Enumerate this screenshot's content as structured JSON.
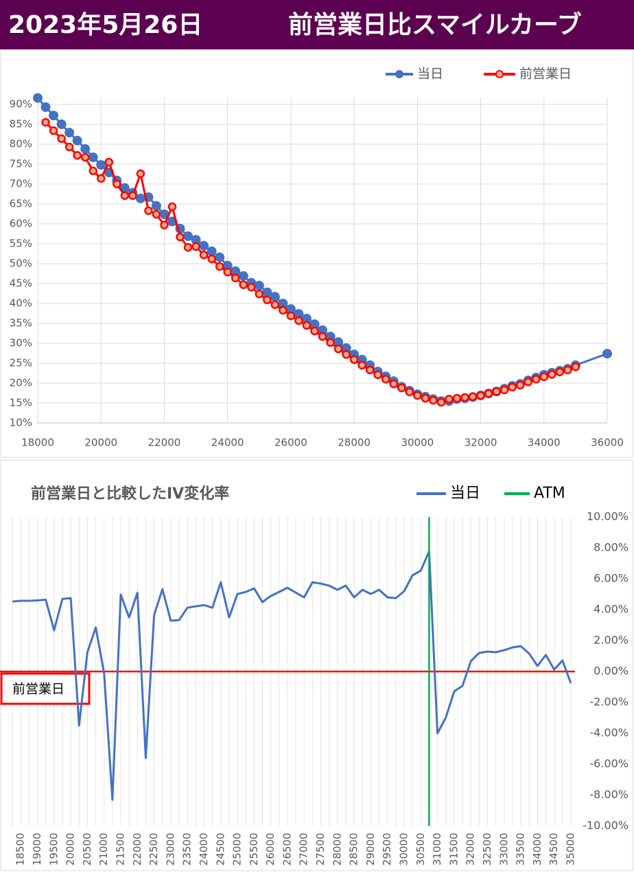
{
  "header": {
    "date": "2023年5月26日",
    "title": "前営業日比スマイルカーブ"
  },
  "chart_data": [
    {
      "type": "line",
      "x": [
        18000,
        18250,
        18500,
        18750,
        19000,
        19250,
        19500,
        19750,
        20000,
        20250,
        20500,
        20750,
        21000,
        21250,
        21500,
        21750,
        22000,
        22250,
        22500,
        22750,
        23000,
        23250,
        23500,
        23750,
        24000,
        24250,
        24500,
        24750,
        25000,
        25250,
        25500,
        25750,
        26000,
        26250,
        26500,
        26750,
        27000,
        27250,
        27500,
        27750,
        28000,
        28250,
        28500,
        28750,
        29000,
        29250,
        29500,
        29750,
        30000,
        30250,
        30500,
        30750,
        31000,
        31250,
        31500,
        31750,
        32000,
        32250,
        32500,
        32750,
        33000,
        33250,
        33500,
        33750,
        34000,
        34250,
        34500,
        34750,
        35000,
        36000
      ],
      "series": [
        {
          "name": "当日",
          "color": "#4472C4",
          "marker": "large",
          "values": [
            91.6,
            89.3,
            87.2,
            85,
            82.9,
            80.9,
            78.8,
            76.7,
            74.8,
            72.9,
            70.9,
            69,
            67.8,
            66.4,
            66.7,
            64.5,
            62.4,
            60.6,
            58.8,
            56.9,
            56,
            54.5,
            53.1,
            51.6,
            49.5,
            48.1,
            46.9,
            45.2,
            44.5,
            42.8,
            41.7,
            40,
            38.6,
            37.4,
            36.2,
            34.8,
            33.3,
            31.7,
            30.3,
            28.8,
            27.2,
            25.9,
            24.5,
            22.9,
            21.7,
            20.5,
            19.1,
            18.1,
            17.2,
            16.6,
            16,
            15.5,
            15.5,
            16,
            16.2,
            16.5,
            16.9,
            17.4,
            17.9,
            18.6,
            19.3,
            19.8,
            20.7,
            21.4,
            22.1,
            22.6,
            23.1,
            23.6,
            24.5,
            27.4
          ]
        },
        {
          "name": "前営業日",
          "color": "#FF0000",
          "marker": "small",
          "values": [
            null,
            85.5,
            83.4,
            81.4,
            79.3,
            77.2,
            76.7,
            73.3,
            71.4,
            75.5,
            70,
            67.1,
            67.1,
            72.6,
            63.3,
            62.4,
            59.7,
            64.3,
            56.7,
            54.1,
            54.3,
            52.2,
            51.2,
            49.3,
            47.9,
            46.4,
            44.7,
            44.1,
            42.4,
            40.9,
            39.7,
            38.3,
            36.9,
            35.7,
            34.5,
            33.1,
            31.7,
            30.2,
            28.6,
            27.2,
            25.9,
            24.5,
            23.3,
            22.1,
            21,
            19.8,
            18.8,
            17.8,
            16.9,
            16.2,
            15.7,
            15.2,
            16,
            16.2,
            16.4,
            16.6,
            16.9,
            17.4,
            17.9,
            18.3,
            19,
            19.5,
            20.3,
            21,
            21.6,
            22.2,
            22.8,
            23.3,
            24.1,
            null
          ]
        }
      ],
      "xlim": [
        18000,
        36000
      ],
      "xticks": [
        18000,
        20000,
        22000,
        24000,
        26000,
        28000,
        30000,
        32000,
        34000,
        36000
      ],
      "ylim": [
        10,
        90
      ],
      "yticks": [
        {
          "value": 10,
          "label": "10%"
        },
        {
          "value": 15,
          "label": "15%"
        },
        {
          "value": 20,
          "label": "20%"
        },
        {
          "value": 25,
          "label": "25%"
        },
        {
          "value": 30,
          "label": "30%"
        },
        {
          "value": 35,
          "label": "35%"
        },
        {
          "value": 40,
          "label": "40%"
        },
        {
          "value": 45,
          "label": "45%"
        },
        {
          "value": 50,
          "label": "50%"
        },
        {
          "value": 55,
          "label": "55%"
        },
        {
          "value": 60,
          "label": "60%"
        },
        {
          "value": 65,
          "label": "65%"
        },
        {
          "value": 70,
          "label": "70%"
        },
        {
          "value": 75,
          "label": "75%"
        },
        {
          "value": 80,
          "label": "80%"
        },
        {
          "value": 85,
          "label": "85%"
        },
        {
          "value": 90,
          "label": "90%"
        }
      ],
      "grid": true,
      "legend": "top-right"
    },
    {
      "type": "line",
      "title": "前営業日と比較したIV変化率",
      "x": [
        18250,
        18500,
        18750,
        19000,
        19250,
        19500,
        19750,
        20000,
        20250,
        20500,
        20750,
        21000,
        21250,
        21500,
        21750,
        22000,
        22250,
        22500,
        22750,
        23000,
        23250,
        23500,
        23750,
        24000,
        24250,
        24500,
        24750,
        25000,
        25250,
        25500,
        25750,
        26000,
        26250,
        26500,
        26750,
        27000,
        27250,
        27500,
        27750,
        28000,
        28250,
        28500,
        28750,
        29000,
        29250,
        29500,
        29750,
        30000,
        30250,
        30500,
        30750,
        31000,
        31250,
        31500,
        31750,
        32000,
        32250,
        32500,
        32750,
        33000,
        33250,
        33500,
        33750,
        34000,
        34250,
        34500,
        34750,
        35000
      ],
      "series": [
        {
          "name": "当日",
          "color": "#4472C4",
          "values": [
            4.53,
            4.58,
            4.58,
            4.6,
            4.65,
            2.67,
            4.7,
            4.75,
            -3.5,
            1.25,
            2.85,
            -0.1,
            -8.3,
            4.98,
            3.5,
            5.1,
            -5.6,
            3.65,
            5.33,
            3.29,
            3.33,
            4.13,
            4.22,
            4.3,
            4.13,
            5.78,
            3.5,
            5.02,
            5.15,
            5.38,
            4.49,
            4.89,
            5.15,
            5.42,
            5.11,
            4.8,
            5.78,
            5.69,
            5.56,
            5.29,
            5.56,
            4.8,
            5.29,
            5.02,
            5.29,
            4.8,
            4.75,
            5.2,
            6.22,
            6.53,
            7.78,
            -4,
            -2.98,
            -1.29,
            -0.93,
            0.67,
            1.2,
            1.29,
            1.25,
            1.38,
            1.56,
            1.64,
            1.16,
            0.36,
            1.07,
            0.13,
            0.71,
            -0.76
          ]
        },
        {
          "name": "ATM",
          "color": "#00B050",
          "x": 30750
        }
      ],
      "reference_line": {
        "value": 0,
        "label": "前営業日",
        "color": "#FF0000"
      },
      "xlim": [
        18125,
        35125
      ],
      "xticks": [
        18500,
        19000,
        19500,
        20000,
        20500,
        21000,
        21500,
        22000,
        22500,
        23000,
        23500,
        24000,
        24500,
        25000,
        25500,
        26000,
        26500,
        27000,
        27500,
        28000,
        28500,
        29000,
        29500,
        30000,
        30500,
        31000,
        31500,
        32000,
        32500,
        33000,
        33500,
        34000,
        34500,
        35000
      ],
      "ylim": [
        -10,
        10
      ],
      "yticks": [
        {
          "value": -10,
          "label": "-10.00%"
        },
        {
          "value": -8,
          "label": "-8.00%"
        },
        {
          "value": -6,
          "label": "-6.00%"
        },
        {
          "value": -4,
          "label": "-4.00%"
        },
        {
          "value": -2,
          "label": "-2.00%"
        },
        {
          "value": 0,
          "label": "0.00%"
        },
        {
          "value": 2,
          "label": "2.00%"
        },
        {
          "value": 4,
          "label": "4.00%"
        },
        {
          "value": 6,
          "label": "6.00%"
        },
        {
          "value": 8,
          "label": "8.00%"
        },
        {
          "value": 10,
          "label": "10.00%"
        }
      ],
      "grid": "x",
      "legend": "top-right"
    }
  ]
}
